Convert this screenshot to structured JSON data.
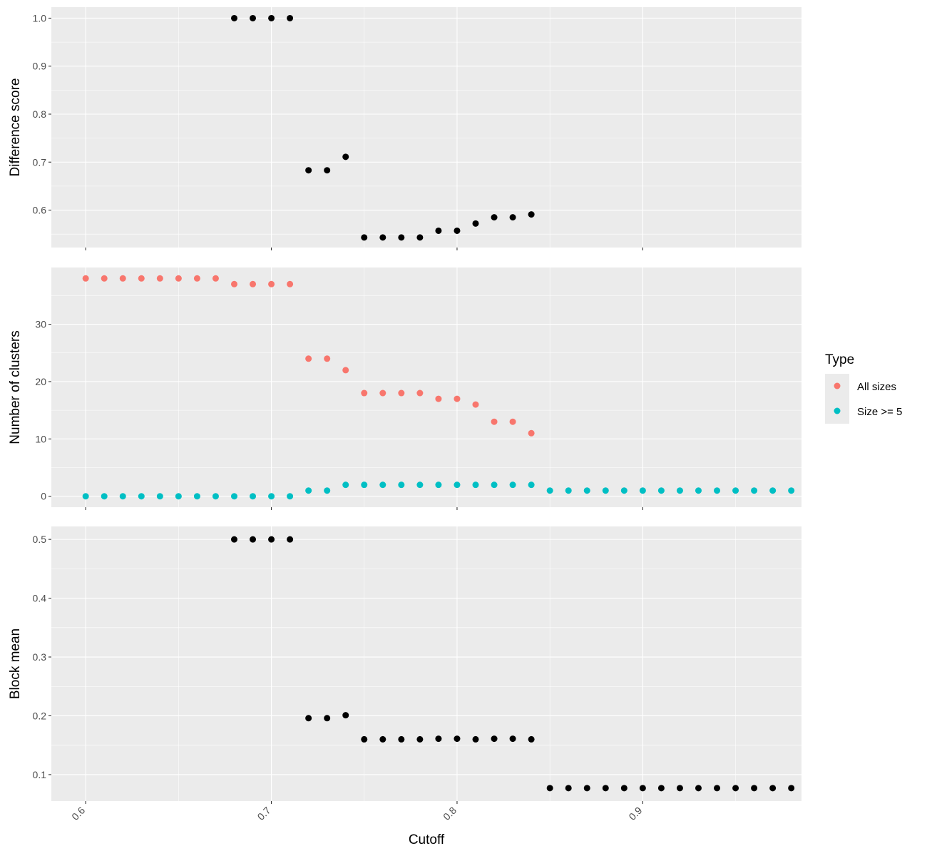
{
  "chart_data": {
    "type": "scatter",
    "x_label": "Cutoff",
    "x_ticks": [
      "0.6",
      "0.7",
      "0.8",
      "0.9"
    ],
    "x_tick_values": [
      0.6,
      0.7,
      0.8,
      0.9
    ],
    "xlim": [
      0.5815,
      0.9855
    ],
    "grid": true,
    "legend": {
      "title": "Type",
      "placement": "right",
      "entries": [
        {
          "name": "All sizes",
          "color": "#F8766D"
        },
        {
          "name": "Size >= 5",
          "color": "#00BFC4"
        }
      ]
    },
    "panels": [
      {
        "id": "difference",
        "ylabel": "Difference score",
        "ylim": [
          0.522,
          1.023
        ],
        "y_ticks": [
          "0.6",
          "0.7",
          "0.8",
          "0.9",
          "1.0"
        ],
        "y_tick_values": [
          0.6,
          0.7,
          0.8,
          0.9,
          1.0
        ],
        "series": [
          {
            "color": "#000000",
            "points": [
              [
                0.68,
                1.0
              ],
              [
                0.69,
                1.0
              ],
              [
                0.7,
                1.0
              ],
              [
                0.71,
                1.0
              ],
              [
                0.72,
                0.683
              ],
              [
                0.73,
                0.683
              ],
              [
                0.74,
                0.711
              ],
              [
                0.75,
                0.543
              ],
              [
                0.76,
                0.543
              ],
              [
                0.77,
                0.543
              ],
              [
                0.78,
                0.543
              ],
              [
                0.79,
                0.557
              ],
              [
                0.8,
                0.557
              ],
              [
                0.81,
                0.572
              ],
              [
                0.82,
                0.585
              ],
              [
                0.83,
                0.585
              ],
              [
                0.84,
                0.591
              ]
            ]
          }
        ]
      },
      {
        "id": "clusters",
        "ylabel": "Number of clusters",
        "ylim": [
          -1.9,
          39.9
        ],
        "y_ticks": [
          "0",
          "10",
          "20",
          "30"
        ],
        "y_tick_values": [
          0,
          10,
          20,
          30
        ],
        "series": [
          {
            "name": "All sizes",
            "color": "#F8766D",
            "points": [
              [
                0.6,
                38
              ],
              [
                0.61,
                38
              ],
              [
                0.62,
                38
              ],
              [
                0.63,
                38
              ],
              [
                0.64,
                38
              ],
              [
                0.65,
                38
              ],
              [
                0.66,
                38
              ],
              [
                0.67,
                38
              ],
              [
                0.68,
                37
              ],
              [
                0.69,
                37
              ],
              [
                0.7,
                37
              ],
              [
                0.71,
                37
              ],
              [
                0.72,
                24
              ],
              [
                0.73,
                24
              ],
              [
                0.74,
                22
              ],
              [
                0.75,
                18
              ],
              [
                0.76,
                18
              ],
              [
                0.77,
                18
              ],
              [
                0.78,
                18
              ],
              [
                0.79,
                17
              ],
              [
                0.8,
                17
              ],
              [
                0.81,
                16
              ],
              [
                0.82,
                13
              ],
              [
                0.83,
                13
              ],
              [
                0.84,
                11
              ]
            ]
          },
          {
            "name": "Size >= 5",
            "color": "#00BFC4",
            "points": [
              [
                0.6,
                0
              ],
              [
                0.61,
                0
              ],
              [
                0.62,
                0
              ],
              [
                0.63,
                0
              ],
              [
                0.64,
                0
              ],
              [
                0.65,
                0
              ],
              [
                0.66,
                0
              ],
              [
                0.67,
                0
              ],
              [
                0.68,
                0
              ],
              [
                0.69,
                0
              ],
              [
                0.7,
                0
              ],
              [
                0.71,
                0
              ],
              [
                0.72,
                1
              ],
              [
                0.73,
                1
              ],
              [
                0.74,
                2
              ],
              [
                0.75,
                2
              ],
              [
                0.76,
                2
              ],
              [
                0.77,
                2
              ],
              [
                0.78,
                2
              ],
              [
                0.79,
                2
              ],
              [
                0.8,
                2
              ],
              [
                0.81,
                2
              ],
              [
                0.82,
                2
              ],
              [
                0.83,
                2
              ],
              [
                0.84,
                2
              ],
              [
                0.85,
                1
              ],
              [
                0.86,
                1
              ],
              [
                0.87,
                1
              ],
              [
                0.88,
                1
              ],
              [
                0.89,
                1
              ],
              [
                0.9,
                1
              ],
              [
                0.91,
                1
              ],
              [
                0.92,
                1
              ],
              [
                0.93,
                1
              ],
              [
                0.94,
                1
              ],
              [
                0.95,
                1
              ],
              [
                0.96,
                1
              ],
              [
                0.97,
                1
              ],
              [
                0.98,
                1
              ]
            ]
          }
        ]
      },
      {
        "id": "block-mean",
        "ylabel": "Block mean",
        "ylim": [
          0.055,
          0.522
        ],
        "y_ticks": [
          "0.1",
          "0.2",
          "0.3",
          "0.4",
          "0.5"
        ],
        "y_tick_values": [
          0.1,
          0.2,
          0.3,
          0.4,
          0.5
        ],
        "series": [
          {
            "color": "#000000",
            "points": [
              [
                0.68,
                0.5
              ],
              [
                0.69,
                0.5
              ],
              [
                0.7,
                0.5
              ],
              [
                0.71,
                0.5
              ],
              [
                0.72,
                0.196
              ],
              [
                0.73,
                0.196
              ],
              [
                0.74,
                0.201
              ],
              [
                0.75,
                0.16
              ],
              [
                0.76,
                0.16
              ],
              [
                0.77,
                0.16
              ],
              [
                0.78,
                0.16
              ],
              [
                0.79,
                0.161
              ],
              [
                0.8,
                0.161
              ],
              [
                0.81,
                0.16
              ],
              [
                0.82,
                0.161
              ],
              [
                0.83,
                0.161
              ],
              [
                0.84,
                0.16
              ],
              [
                0.85,
                0.077
              ],
              [
                0.86,
                0.077
              ],
              [
                0.87,
                0.077
              ],
              [
                0.88,
                0.077
              ],
              [
                0.89,
                0.077
              ],
              [
                0.9,
                0.077
              ],
              [
                0.91,
                0.077
              ],
              [
                0.92,
                0.077
              ],
              [
                0.93,
                0.077
              ],
              [
                0.94,
                0.077
              ],
              [
                0.95,
                0.077
              ],
              [
                0.96,
                0.077
              ],
              [
                0.97,
                0.077
              ],
              [
                0.98,
                0.077
              ]
            ]
          }
        ]
      }
    ]
  }
}
